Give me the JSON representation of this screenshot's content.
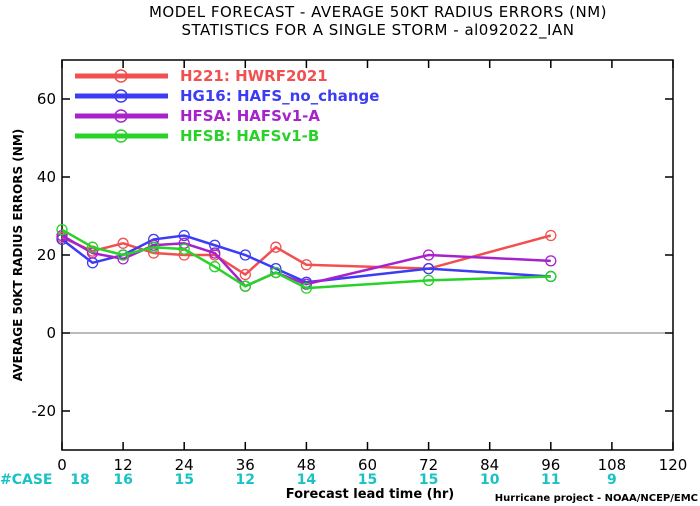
{
  "chart_data": {
    "type": "line",
    "title": "MODEL FORECAST - AVERAGE 50KT RADIUS ERRORS (NM)",
    "subtitle": "STATISTICS FOR A SINGLE STORM - al092022_IAN",
    "xlabel": "Forecast lead time (hr)",
    "ylabel": "AVERAGE 50KT RADIUS ERRORS (NM)",
    "xlim": [
      0,
      120
    ],
    "ylim": [
      -30,
      70
    ],
    "xticks": [
      "0",
      "12",
      "24",
      "36",
      "48",
      "60",
      "72",
      "84",
      "96",
      "108",
      "120"
    ],
    "yticks": [
      "-20",
      "0",
      "20",
      "40",
      "60"
    ],
    "grid": false,
    "legend_position": "top-left",
    "zero_line": true,
    "series": [
      {
        "name": "H221: HWRF2021",
        "color": "#f25050",
        "points": [
          [
            0,
            24.5
          ],
          [
            6,
            21
          ],
          [
            12,
            23
          ],
          [
            18,
            20.5
          ],
          [
            24,
            20
          ],
          [
            30,
            20
          ],
          [
            36,
            15
          ],
          [
            42,
            22
          ],
          [
            48,
            17.5
          ],
          [
            72,
            16.5
          ],
          [
            96,
            25
          ]
        ]
      },
      {
        "name": "HG16: HAFS_no_change",
        "color": "#3c3cf5",
        "points": [
          [
            0,
            24
          ],
          [
            6,
            18
          ],
          [
            12,
            20
          ],
          [
            18,
            24
          ],
          [
            24,
            25
          ],
          [
            30,
            22.5
          ],
          [
            36,
            20
          ],
          [
            42,
            16.5
          ],
          [
            48,
            13
          ],
          [
            72,
            16.5
          ],
          [
            96,
            14.5
          ]
        ]
      },
      {
        "name": "HFSA: HAFSv1-A",
        "color": "#a822cc",
        "points": [
          [
            0,
            25
          ],
          [
            6,
            20.5
          ],
          [
            12,
            19
          ],
          [
            18,
            22.5
          ],
          [
            24,
            23
          ],
          [
            30,
            20.5
          ],
          [
            36,
            12
          ],
          [
            42,
            15.5
          ],
          [
            48,
            12.5
          ],
          [
            72,
            20
          ],
          [
            96,
            18.5
          ]
        ]
      },
      {
        "name": "HFSB: HAFSv1-B",
        "color": "#28d228",
        "points": [
          [
            0,
            26.5
          ],
          [
            6,
            22
          ],
          [
            12,
            20
          ],
          [
            18,
            22
          ],
          [
            24,
            21.5
          ],
          [
            30,
            17
          ],
          [
            36,
            12
          ],
          [
            42,
            15.5
          ],
          [
            48,
            11.5
          ],
          [
            72,
            13.5
          ],
          [
            96,
            14.5
          ]
        ]
      }
    ],
    "case_counts": {
      "label": "#CASE",
      "x": [
        0,
        12,
        24,
        36,
        48,
        60,
        72,
        84,
        96,
        108
      ],
      "values": [
        "18",
        "16",
        "15",
        "12",
        "14",
        "15",
        "15",
        "10",
        "11",
        "9"
      ]
    }
  },
  "credit": "Hurricane project - NOAA/NCEP/EMC"
}
